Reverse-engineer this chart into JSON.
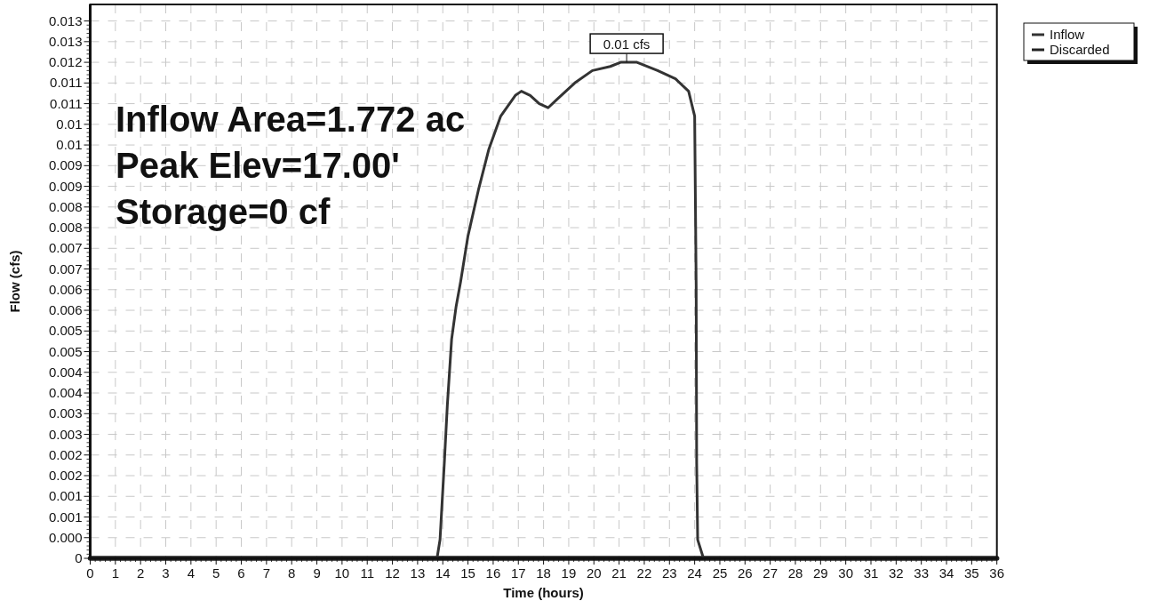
{
  "chart_data": {
    "type": "line",
    "xlabel": "Time  (hours)",
    "ylabel": "Flow  (cfs)",
    "xlim": [
      0,
      36
    ],
    "ylim": [
      0,
      0.0134
    ],
    "xticks": [
      0,
      1,
      2,
      3,
      4,
      5,
      6,
      7,
      8,
      9,
      10,
      11,
      12,
      13,
      14,
      15,
      16,
      17,
      18,
      19,
      20,
      21,
      22,
      23,
      24,
      25,
      26,
      27,
      28,
      29,
      30,
      31,
      32,
      33,
      34,
      35,
      36
    ],
    "yticks": [
      0,
      {
        "value": 0.0005,
        "label": "0.000"
      },
      {
        "value": 0.001,
        "label": "0.001"
      },
      {
        "value": 0.0015,
        "label": "0.001"
      },
      {
        "value": 0.002,
        "label": "0.002"
      },
      {
        "value": 0.0025,
        "label": "0.002"
      },
      {
        "value": 0.003,
        "label": "0.003"
      },
      {
        "value": 0.0035,
        "label": "0.003"
      },
      {
        "value": 0.004,
        "label": "0.004"
      },
      {
        "value": 0.0045,
        "label": "0.004"
      },
      {
        "value": 0.005,
        "label": "0.005"
      },
      {
        "value": 0.0055,
        "label": "0.005"
      },
      {
        "value": 0.006,
        "label": "0.006"
      },
      {
        "value": 0.0065,
        "label": "0.006"
      },
      {
        "value": 0.007,
        "label": "0.007"
      },
      {
        "value": 0.0075,
        "label": "0.007"
      },
      {
        "value": 0.008,
        "label": "0.008"
      },
      {
        "value": 0.0085,
        "label": "0.008"
      },
      {
        "value": 0.009,
        "label": "0.009"
      },
      {
        "value": 0.0095,
        "label": "0.009"
      },
      {
        "value": 0.01,
        "label": "0.01"
      },
      {
        "value": 0.0105,
        "label": "0.01"
      },
      {
        "value": 0.011,
        "label": "0.011"
      },
      {
        "value": 0.0115,
        "label": "0.011"
      },
      {
        "value": 0.012,
        "label": "0.012"
      },
      {
        "value": 0.0125,
        "label": "0.013"
      },
      {
        "value": 0.013,
        "label": "0.013"
      }
    ],
    "grid": true,
    "legend": "top right",
    "marker": "none",
    "line_style": "solid",
    "series": [
      {
        "name": "Inflow",
        "color": "#333333",
        "x": [
          0,
          13.77,
          13.89,
          14.06,
          14.18,
          14.35,
          14.53,
          14.71,
          15.0,
          15.41,
          15.83,
          16.3,
          16.88,
          17.12,
          17.47,
          17.83,
          18.18,
          18.53,
          19.24,
          19.94,
          20.65,
          21.06,
          21.71,
          22.53,
          23.24,
          23.76,
          24.0,
          24.06,
          24.08,
          24.12,
          24.35,
          36
        ],
        "values": [
          0,
          0,
          0.00045,
          0.0023,
          0.0037,
          0.0053,
          0.0061,
          0.0067,
          0.0078,
          0.0089,
          0.0099,
          0.0107,
          0.0112,
          0.0113,
          0.0112,
          0.011,
          0.0109,
          0.0111,
          0.0115,
          0.0118,
          0.0119,
          0.012,
          0.012,
          0.0118,
          0.0116,
          0.0113,
          0.0107,
          0.0066,
          0.0023,
          0.00045,
          0,
          0
        ]
      },
      {
        "name": "Discarded",
        "color": "#222222",
        "x": [
          0,
          36
        ],
        "values": [
          0,
          0
        ]
      }
    ],
    "annotations": [
      {
        "text": "0.01 cfs",
        "x": 21.3,
        "y": 0.012
      },
      "Inflow Area=1.772 ac",
      "Peak Elev=17.00'",
      "Storage=0 cf"
    ]
  }
}
